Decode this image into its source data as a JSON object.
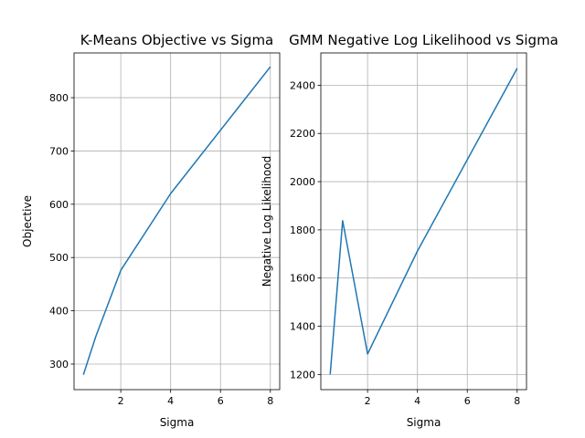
{
  "chart_data": [
    {
      "type": "line",
      "title": "K-Means Objective vs Sigma",
      "xlabel": "Sigma",
      "ylabel": "Objective",
      "xlim": [
        0.125,
        8.375
      ],
      "ylim": [
        252,
        884
      ],
      "xticks": [
        2,
        4,
        6,
        8
      ],
      "yticks": [
        300,
        400,
        500,
        600,
        700,
        800
      ],
      "grid": true,
      "series": [
        {
          "color": "#1f77b4",
          "x": [
            0.5,
            1,
            2,
            4,
            8
          ],
          "y": [
            280,
            352,
            476,
            620,
            858
          ]
        }
      ]
    },
    {
      "type": "line",
      "title": "GMM Negative Log Likelihood vs Sigma",
      "xlabel": "Sigma",
      "ylabel": "Negative Log Likelihood",
      "xlim": [
        0.125,
        8.375
      ],
      "ylim": [
        1137,
        2534
      ],
      "xticks": [
        2,
        4,
        6,
        8
      ],
      "yticks": [
        1200,
        1400,
        1600,
        1800,
        2000,
        2200,
        2400
      ],
      "grid": true,
      "series": [
        {
          "color": "#1f77b4",
          "x": [
            0.5,
            1,
            2,
            4,
            8
          ],
          "y": [
            1200,
            1838,
            1285,
            1712,
            2470
          ]
        }
      ]
    }
  ]
}
